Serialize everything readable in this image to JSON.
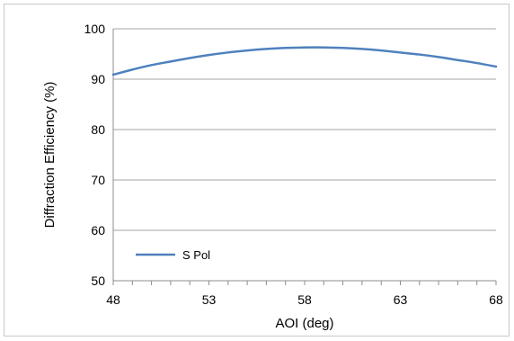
{
  "chart_data": {
    "type": "line",
    "title": "",
    "xlabel": "AOI (deg)",
    "ylabel": "Diffraction Efficiency (%)",
    "xlim": [
      48,
      68
    ],
    "ylim": [
      50,
      100
    ],
    "x_ticks": [
      48,
      53,
      58,
      63,
      68
    ],
    "y_ticks": [
      50,
      60,
      70,
      80,
      90,
      100
    ],
    "x_minor_step": 1,
    "grid": "horizontal",
    "legend_position": "bottom-left",
    "series": [
      {
        "name": "S Pol",
        "color": "#4f81bd",
        "x": [
          48,
          49,
          50,
          51,
          52,
          53,
          54,
          55,
          56,
          57,
          58,
          59,
          60,
          61,
          62,
          63,
          64,
          65,
          66,
          67,
          68
        ],
        "y": [
          90.9,
          91.9,
          92.8,
          93.5,
          94.2,
          94.8,
          95.3,
          95.7,
          96.0,
          96.2,
          96.3,
          96.3,
          96.2,
          96.0,
          95.7,
          95.3,
          94.9,
          94.4,
          93.8,
          93.2,
          92.5
        ]
      }
    ]
  }
}
